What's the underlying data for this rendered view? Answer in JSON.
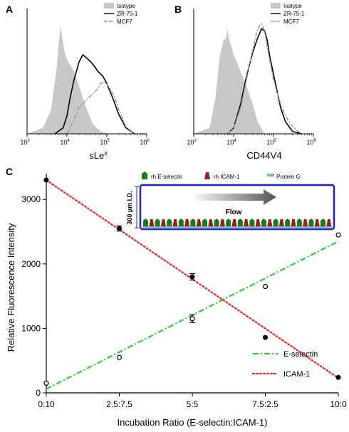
{
  "panels": {
    "A": {
      "letter": "A",
      "xlabel": "sLe",
      "xlabel_sup": "x",
      "ticks": [
        {
          "b": "10",
          "e": "3"
        },
        {
          "b": "10",
          "e": "4"
        },
        {
          "b": "10",
          "e": "5"
        },
        {
          "b": "10",
          "e": "6"
        }
      ],
      "legend": [
        {
          "label": "Isotype",
          "style": "fill",
          "color": "#c8c8c8"
        },
        {
          "label": "ZR-75-1",
          "style": "solid",
          "color": "#000000"
        },
        {
          "label": "MCF7",
          "style": "dashdot",
          "color": "#999999"
        }
      ]
    },
    "B": {
      "letter": "B",
      "xlabel": "CD44V4",
      "ticks": [
        {
          "b": "10",
          "e": "3"
        },
        {
          "b": "10",
          "e": "4"
        },
        {
          "b": "10",
          "e": "5"
        },
        {
          "b": "10",
          "e": "6"
        }
      ],
      "legend": [
        {
          "label": "Isotype",
          "style": "fill",
          "color": "#c8c8c8"
        },
        {
          "label": "ZR-75-1",
          "style": "solid",
          "color": "#000000"
        },
        {
          "label": "MCF7",
          "style": "dashdot",
          "color": "#999999"
        }
      ]
    },
    "C": {
      "letter": "C",
      "inset": {
        "legend": [
          {
            "label": "rh E-selectin",
            "color": "#1a7a1a"
          },
          {
            "label": "rh ICAM-1",
            "color": "#9b1c1c"
          },
          {
            "label": "Protein G",
            "color": "#7ab8b0"
          }
        ],
        "channel_label": "300 µm I.D.",
        "flow_label": "Flow",
        "channel_color": "#1f1fd1"
      }
    }
  },
  "chart_data": [
    {
      "type": "area",
      "panel": "A",
      "x_scale": "log",
      "xlim": [
        1000,
        1000000
      ],
      "x_ticks": [
        1000,
        10000,
        100000,
        1000000
      ],
      "series": [
        {
          "name": "Isotype",
          "x": [
            1000,
            2500,
            4000,
            5500,
            6500,
            7000,
            7500,
            8500,
            10000,
            12000,
            15000,
            20000,
            30000,
            45000,
            70000,
            100000,
            1000000
          ],
          "values": [
            0,
            0.05,
            0.2,
            0.55,
            0.82,
            0.9,
            0.82,
            0.7,
            0.62,
            0.58,
            0.52,
            0.4,
            0.22,
            0.08,
            0.02,
            0,
            0
          ]
        },
        {
          "name": "ZR-75-1",
          "x": [
            5000,
            8000,
            10000,
            12000,
            15000,
            20000,
            25000,
            30000,
            40000,
            50000,
            60000,
            70000,
            80000,
            100000,
            140000,
            200000,
            300000,
            500000
          ],
          "values": [
            0,
            0.05,
            0.15,
            0.3,
            0.45,
            0.6,
            0.66,
            0.64,
            0.6,
            0.56,
            0.52,
            0.5,
            0.48,
            0.42,
            0.3,
            0.16,
            0.05,
            0
          ]
        },
        {
          "name": "MCF7",
          "x": [
            10000,
            15000,
            20000,
            30000,
            40000,
            50000,
            60000,
            70000,
            80000,
            100000,
            150000,
            200000,
            300000,
            500000
          ],
          "values": [
            0,
            0.12,
            0.22,
            0.28,
            0.32,
            0.35,
            0.38,
            0.42,
            0.43,
            0.42,
            0.32,
            0.2,
            0.06,
            0
          ]
        }
      ]
    },
    {
      "type": "area",
      "panel": "B",
      "x_scale": "log",
      "xlim": [
        1000,
        1000000
      ],
      "x_ticks": [
        1000,
        10000,
        100000,
        1000000
      ],
      "series": [
        {
          "name": "Isotype",
          "x": [
            1000,
            2500,
            3500,
            4500,
            5500,
            6500,
            7000,
            7800,
            9000,
            10000,
            12000,
            15000,
            20000,
            30000,
            40000,
            60000,
            1000000
          ],
          "values": [
            0,
            0.05,
            0.3,
            0.65,
            0.78,
            0.8,
            0.88,
            0.78,
            0.72,
            0.66,
            0.6,
            0.52,
            0.42,
            0.25,
            0.1,
            0,
            0
          ]
        },
        {
          "name": "ZR-75-1",
          "x": [
            7000,
            10000,
            15000,
            20000,
            30000,
            40000,
            50000,
            60000,
            70000,
            80000,
            100000,
            150000,
            200000,
            300000,
            500000
          ],
          "values": [
            0,
            0.05,
            0.25,
            0.45,
            0.68,
            0.8,
            0.88,
            0.86,
            0.78,
            0.65,
            0.5,
            0.22,
            0.1,
            0.02,
            0
          ]
        },
        {
          "name": "MCF7",
          "x": [
            7000,
            10000,
            15000,
            20000,
            30000,
            40000,
            50000,
            60000,
            70000,
            100000,
            150000,
            200000,
            300000,
            500000
          ],
          "values": [
            0,
            0.05,
            0.22,
            0.42,
            0.7,
            0.88,
            0.92,
            0.86,
            0.72,
            0.45,
            0.25,
            0.15,
            0.06,
            0
          ]
        }
      ]
    },
    {
      "type": "line",
      "panel": "C",
      "xlabel": "Incubation Ratio (E-selectin:ICAM-1)",
      "ylabel": "Relative Fluorescence Intensity",
      "categories": [
        "0:10",
        "2.5:7.5",
        "5:5",
        "7.5:2.5",
        "10:0"
      ],
      "ylim": [
        0,
        3400
      ],
      "y_ticks": [
        0,
        1000,
        2000,
        3000
      ],
      "legend_position": "right",
      "series": [
        {
          "name": "E-selectin",
          "color": "#33cc33",
          "style": "dashdot",
          "marker": "open-circle",
          "values": [
            150,
            550,
            1150,
            1650,
            2450
          ],
          "errors": [
            0,
            0,
            60,
            0,
            0
          ],
          "fit": [
            60,
            2350
          ]
        },
        {
          "name": "ICAM-1",
          "color": "#ee2222",
          "style": "dotted",
          "marker": "filled-circle",
          "values": [
            3300,
            2550,
            1800,
            860,
            240
          ],
          "errors": [
            0,
            40,
            50,
            0,
            0
          ],
          "fit": [
            3300,
            230
          ]
        }
      ]
    }
  ]
}
